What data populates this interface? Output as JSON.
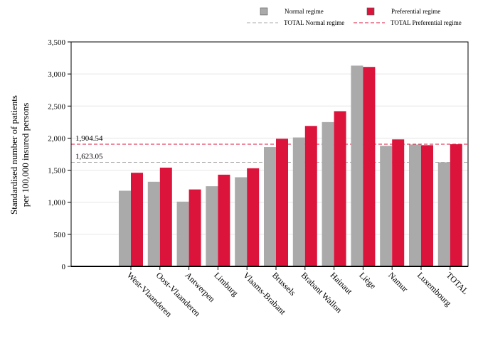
{
  "chart_data": {
    "type": "bar",
    "categories": [
      "West-Vlaanderen",
      "Oost-Vlaanderen",
      "Antwerpen",
      "Limburg",
      "Vlaams-Brabant",
      "Brussels",
      "Brabant Wallon",
      "Hainaut",
      "Liège",
      "Namur",
      "Luxembourg",
      "TOTAL"
    ],
    "series": [
      {
        "name": "Normal regime",
        "color": "#aaaaaa",
        "values": [
          1180,
          1320,
          1010,
          1250,
          1390,
          1860,
          2010,
          2250,
          3130,
          1880,
          1900,
          1623.05
        ]
      },
      {
        "name": "Preferential regime",
        "color": "#dc143c",
        "values": [
          1460,
          1540,
          1200,
          1430,
          1530,
          1990,
          2190,
          2420,
          3110,
          1980,
          1890,
          1904.54
        ]
      }
    ],
    "reference_lines": [
      {
        "name": "TOTAL Normal regime",
        "value": 1623.05,
        "label": "1,623.05",
        "color": "#aaaaaa",
        "style": "dashed"
      },
      {
        "name": "TOTAL Preferential regime",
        "value": 1904.54,
        "label": "1,904.54",
        "color": "#dc143c",
        "style": "dashed"
      }
    ],
    "ylabel_lines": [
      "Standardised number of patients",
      "per 100,000 insured persons"
    ],
    "xlabel": "",
    "ylim": [
      0,
      3500
    ],
    "yticks": [
      0,
      500,
      1000,
      1500,
      2000,
      2500,
      3000,
      3500
    ],
    "ytick_labels": [
      "0",
      "500",
      "1,000",
      "1,500",
      "2,000",
      "2,500",
      "3,000",
      "3,500"
    ],
    "grid": "horizontal",
    "legend_position": "top"
  }
}
